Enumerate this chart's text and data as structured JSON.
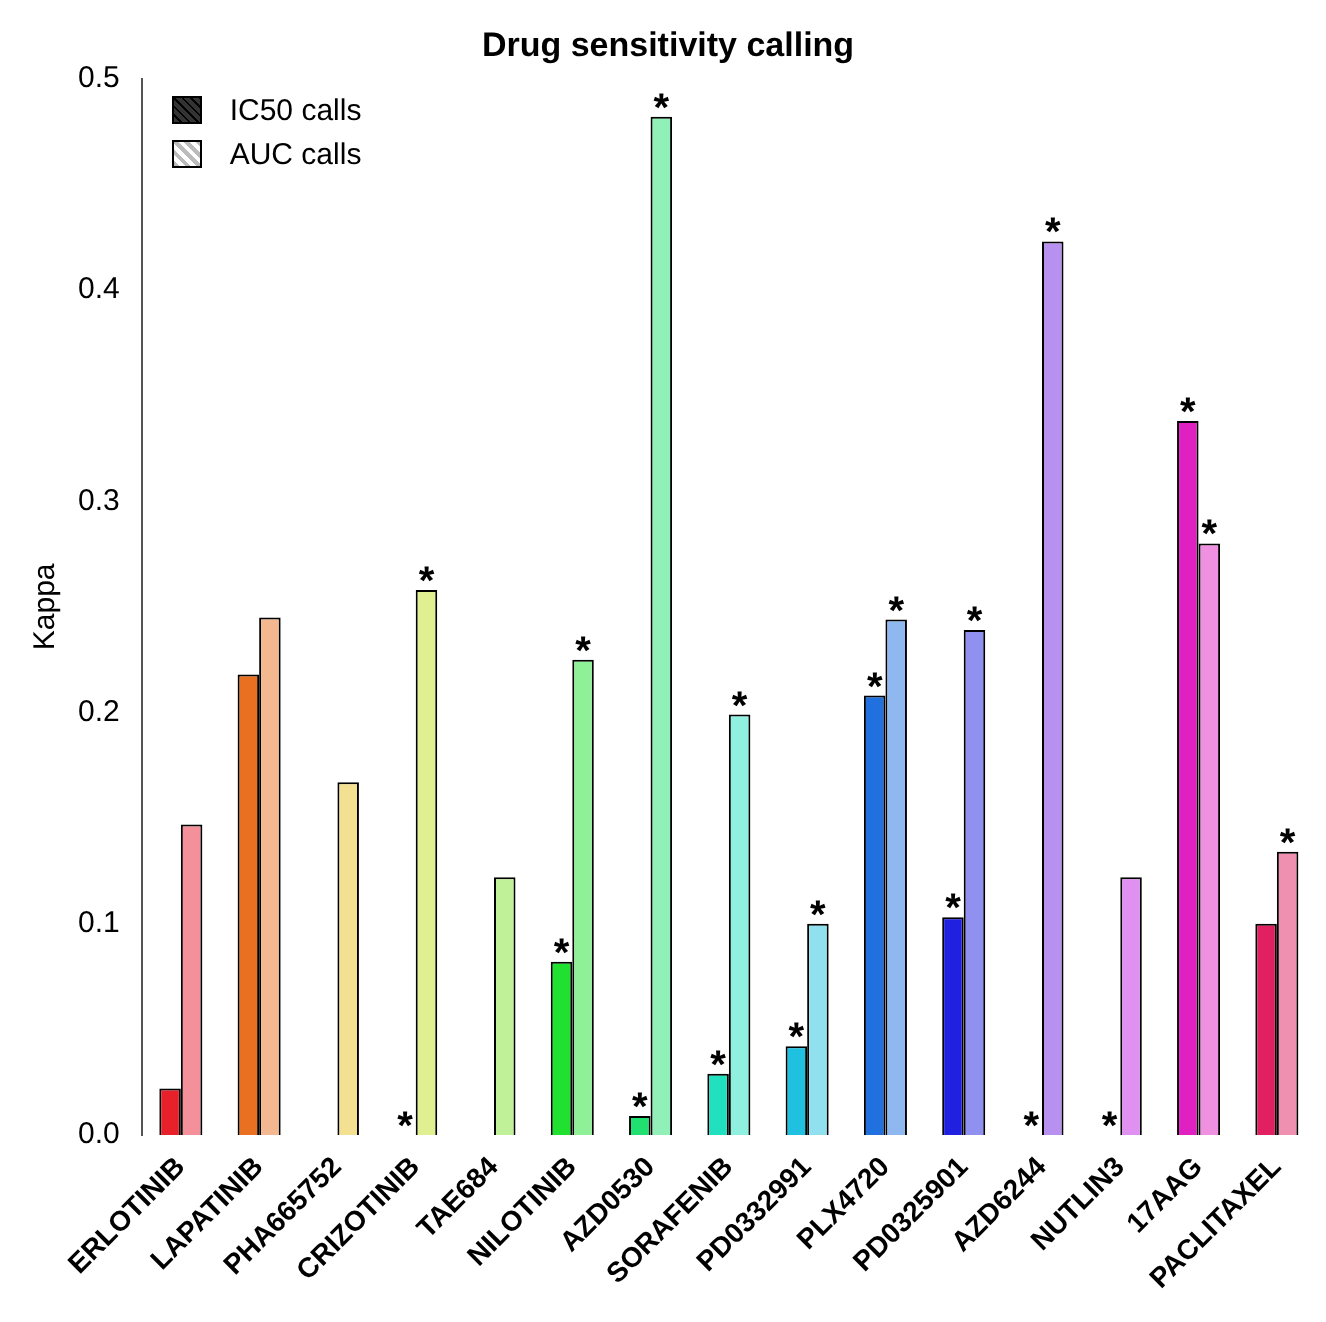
{
  "chart_data": {
    "type": "bar",
    "title": "Drug sensitivity calling",
    "ylabel": "Kappa",
    "categories": [
      "ERLOTINIB",
      "LAPATINIB",
      "PHA665752",
      "CRIZOTINIB",
      "TAE684",
      "NILOTINIB",
      "AZD0530",
      "SORAFENIB",
      "PD0332991",
      "PLX4720",
      "PD0325901",
      "AZD6244",
      "NUTLIN3",
      "17AAG",
      "PACLITAXEL"
    ],
    "series": [
      {
        "name": "IC50 calls",
        "color": "#333333",
        "colors": [
          "#e8202a",
          "#e87020",
          "#e8c020",
          "#c0e020",
          "#80e030",
          "#20e030",
          "#20e070",
          "#20e0c0",
          "#20c0e0",
          "#2070e0",
          "#2020e0",
          "#7020e0",
          "#c020e0",
          "#e020c0",
          "#e02060"
        ],
        "values": [
          0.022,
          0.218,
          0,
          0,
          0,
          0.082,
          0.009,
          0.029,
          0.042,
          0.208,
          0.103,
          0,
          0,
          0.338,
          0.1
        ],
        "value_labels": [
          null,
          null,
          null,
          "*",
          null,
          "*",
          "*",
          "*",
          "*",
          "*",
          "*",
          "*",
          "*",
          "*",
          null
        ]
      },
      {
        "name": "AUC calls",
        "color": "#bbbbbb",
        "colors": [
          "#f3909a",
          "#f3b890",
          "#f3e090",
          "#e0f090",
          "#c0f098",
          "#90f098",
          "#90f0b8",
          "#90f0e0",
          "#90e0f0",
          "#90b8f0",
          "#9090f0",
          "#b890f0",
          "#e090f0",
          "#f090e0",
          "#f090b0"
        ],
        "values": [
          0.147,
          0.245,
          0.167,
          0.258,
          0.122,
          0.225,
          0.482,
          0.199,
          0.1,
          0.244,
          0.239,
          0.423,
          0.122,
          0.28,
          0.134
        ],
        "value_labels": [
          null,
          null,
          null,
          "*",
          null,
          "*",
          "*",
          "*",
          "*",
          "*",
          "*",
          "*",
          null,
          "*",
          "*"
        ]
      }
    ],
    "ylim": [
      0,
      0.5
    ],
    "yticks": [
      {
        "value": 0,
        "label": "0.0"
      },
      0.1,
      0.2,
      0.3,
      0.4,
      0.5
    ],
    "legend": "top left",
    "grid": false
  }
}
